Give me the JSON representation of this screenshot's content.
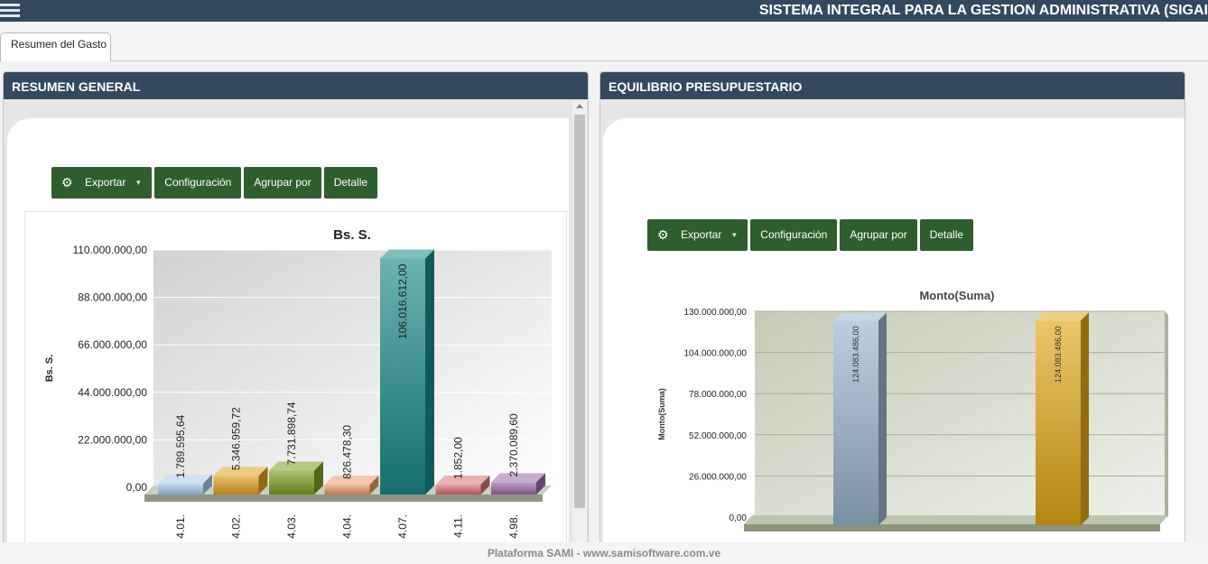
{
  "app": {
    "title": "SISTEMA INTEGRAL PARA LA GESTION ADMINISTRATIVA (SIGAI"
  },
  "tabs": [
    {
      "label": "Resumen del Gasto"
    }
  ],
  "toolbar": {
    "export_label": "Exportar",
    "config_label": "Configuración",
    "group_label": "Agrupar por",
    "detail_label": "Detalle"
  },
  "panels": {
    "left": {
      "title": "RESUMEN GENERAL"
    },
    "right": {
      "title": "EQUILIBRIO PRESUPUESTARIO"
    }
  },
  "footer": {
    "text": "Plataforma SAMI - www.samisoftware.com.ve"
  },
  "colors": {
    "header": "#34495e",
    "button": "#2e5e2d",
    "left_bars": [
      "#a8c8e8",
      "#e0a020",
      "#78a020",
      "#e89a68",
      "#1a8a88",
      "#d87070",
      "#9a6aa8"
    ],
    "right_bars": [
      "#9ab4cc",
      "#e0a818"
    ]
  },
  "chart_data": [
    {
      "type": "bar",
      "title": "Bs. S.",
      "xlabel": "",
      "ylabel": "Bs. S.",
      "ylim": [
        0,
        110000000
      ],
      "yticks": [
        "0,00",
        "22.000.000,00",
        "44.000.000,00",
        "66.000.000,00",
        "88.000.000,00",
        "110.000.000,00"
      ],
      "categories": [
        "4.01.",
        "4.02.",
        "4.03.",
        "4.04.",
        "4.07.",
        "4.11.",
        "4.98."
      ],
      "values": [
        1789595.64,
        5346959.72,
        7731898.74,
        826478.3,
        106016612.0,
        1852.0,
        2370089.6
      ],
      "labels": [
        "1.789.595,64",
        "5.346.959,72",
        "7.731.898,74",
        "826.478,30",
        "106.016.612,00",
        "1.852,00",
        "2.370.089,60"
      ]
    },
    {
      "type": "bar",
      "title": "Monto(Suma)",
      "xlabel": "",
      "ylabel": "Monto(Suma)",
      "ylim": [
        0,
        130000000
      ],
      "yticks": [
        "0,00",
        "26.000.000,00",
        "52.000.000,00",
        "78.000.000,00",
        "104.000.000,00",
        "130.000.000,00"
      ],
      "values": [
        124083486.0,
        124083486.0
      ],
      "labels": [
        "124.083.486,00",
        "124.083.486,00"
      ]
    }
  ]
}
